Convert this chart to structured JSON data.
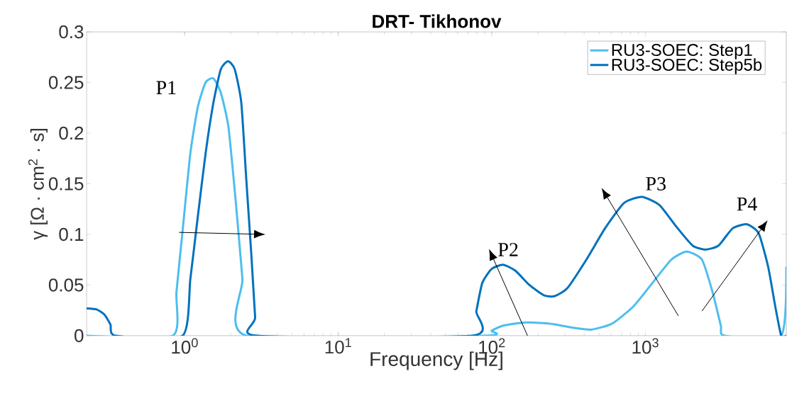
{
  "chart_data": {
    "type": "line",
    "title": "DRT- Tikhonov",
    "xlabel": "Frequency [Hz]",
    "ylabel": "γ [Ω · cm$^{2}$ · s]",
    "log": "x",
    "xlim": [
      0.23,
      8280
    ],
    "ylim": [
      0,
      0.3
    ],
    "xticks": [
      {
        "value": 1,
        "label": "10$^{0}$"
      },
      {
        "value": 10,
        "label": "10$^{1}$"
      },
      {
        "value": 100,
        "label": "10$^{2}$"
      },
      {
        "value": 1000,
        "label": "10$^{3}$"
      }
    ],
    "yticks": [
      0,
      0.05,
      0.1,
      0.15,
      0.2,
      0.25,
      0.3
    ],
    "grid": false,
    "legend": "top right",
    "marker": "none",
    "line_style": "solid",
    "series": [
      {
        "name": "RU3-SOEC: Step1",
        "color": "#4dbeee",
        "x": [
          0.23,
          0.836,
          0.885,
          0.974,
          1.09,
          1.22,
          1.37,
          1.54,
          1.72,
          1.93,
          2.16,
          2.38,
          2.54,
          89.9,
          100,
          119,
          164,
          234,
          333,
          443,
          609,
          838,
          1112,
          1476,
          1858,
          2339,
          2742,
          3104,
          3275,
          7670,
          8280
        ],
        "values": [
          0,
          0,
          0.043,
          0.106,
          0.18,
          0.226,
          0.25,
          0.254,
          0.24,
          0.206,
          0.13,
          0.056,
          0,
          0,
          0.005,
          0.01,
          0.013,
          0.012,
          0.008,
          0.006,
          0.012,
          0.029,
          0.052,
          0.075,
          0.083,
          0.075,
          0.043,
          0.01,
          0,
          0,
          0.068
        ]
      },
      {
        "name": "RU3-SOEC: Step5b",
        "color": "#0072bd",
        "x": [
          0.23,
          0.267,
          0.3,
          0.329,
          0.355,
          0.97,
          1.09,
          1.22,
          1.37,
          1.54,
          1.72,
          1.92,
          2.12,
          2.34,
          2.52,
          2.72,
          2.88,
          2.96,
          75,
          79.4,
          86.8,
          100,
          119,
          143,
          176,
          218,
          256,
          311,
          413,
          547,
          727,
          949,
          1237,
          1585,
          2032,
          2467,
          2998,
          3707,
          4590,
          5476,
          6310,
          7015,
          7670,
          8280
        ],
        "values": [
          0.027,
          0.026,
          0.021,
          0.011,
          0,
          0,
          0.056,
          0.118,
          0.18,
          0.23,
          0.263,
          0.271,
          0.263,
          0.23,
          0.155,
          0.08,
          0.018,
          0,
          0,
          0.024,
          0.052,
          0.066,
          0.07,
          0.064,
          0.05,
          0.04,
          0.039,
          0.047,
          0.075,
          0.106,
          0.131,
          0.137,
          0.129,
          0.108,
          0.089,
          0.085,
          0.089,
          0.106,
          0.11,
          0.101,
          0.068,
          0.029,
          0,
          0
        ]
      }
    ],
    "annotations": [
      "P1",
      "P2",
      "P3",
      "P4"
    ]
  }
}
